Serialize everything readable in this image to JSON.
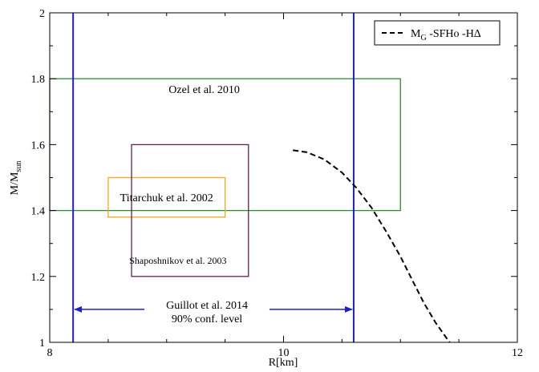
{
  "chart_data": {
    "type": "line",
    "xlabel": "R[km]",
    "ylabel_main": "M/M",
    "ylabel_sub": "sun",
    "xlim": [
      8,
      12
    ],
    "ylim": [
      1,
      2
    ],
    "x_ticks": [
      8,
      10,
      12
    ],
    "x_tick_labels": [
      "8",
      "10",
      "12"
    ],
    "y_ticks": [
      1,
      1.2,
      1.4,
      1.6,
      1.8,
      2
    ],
    "y_tick_labels": [
      "1",
      "1.2",
      "1.4",
      "1.6",
      "1.8",
      "2"
    ],
    "grid": false,
    "legend_position": "top-right",
    "series": [
      {
        "name": "M_G-SFHo-HΔ",
        "legend_main": "M",
        "legend_sub": "G",
        "legend_rest": " -SFHo -HΔ",
        "style": "dashed",
        "color": "#000000",
        "x": [
          10.08,
          10.2,
          10.35,
          10.5,
          10.62,
          10.75,
          10.88,
          11.0,
          11.1,
          11.2,
          11.3,
          11.42
        ],
        "y": [
          1.583,
          1.577,
          1.555,
          1.515,
          1.47,
          1.41,
          1.335,
          1.26,
          1.19,
          1.12,
          1.06,
          1.0
        ]
      }
    ],
    "regions": [
      {
        "label": "Ozel et al. 2010",
        "xmin": 8.0,
        "xmax": 11.0,
        "ymin": 1.4,
        "ymax": 1.8,
        "color": "#2e8b2e"
      },
      {
        "label": "Titarchuk et al. 2002",
        "xmin": 8.5,
        "xmax": 9.5,
        "ymin": 1.38,
        "ymax": 1.5,
        "color": "#f5a623"
      },
      {
        "label": "Shaposhnikov et al. 2003",
        "xmin": 8.7,
        "xmax": 9.7,
        "ymin": 1.2,
        "ymax": 1.6,
        "color": "#6b1d4e"
      }
    ],
    "vertical_lines": [
      {
        "x": 8.2,
        "color": "#1f1fd0"
      },
      {
        "x": 10.6,
        "color": "#1f1fd0"
      }
    ],
    "arrow_annotation": {
      "label_line1": "Guillot et al. 2014",
      "label_line2": "90% conf. level",
      "x_from": 8.2,
      "x_to": 10.6,
      "y": 1.1,
      "color": "#1f1fd0"
    }
  }
}
